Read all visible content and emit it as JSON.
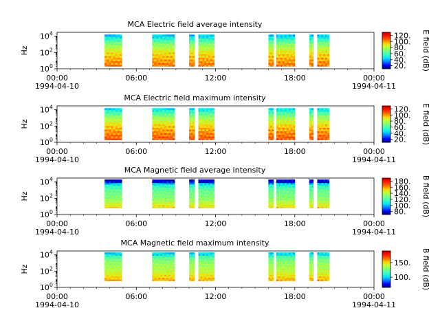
{
  "colors": {
    "colormap": [
      "#00007f",
      "#0000ff",
      "#0080ff",
      "#00e5f5",
      "#3cffbb",
      "#7dff7a",
      "#baff3c",
      "#ffd500",
      "#ff6a00",
      "#ff1a00",
      "#bf0000"
    ]
  },
  "chart_data": [
    {
      "type": "heatmap",
      "title": "MCA  Electric field average intensity",
      "ylabel": "Hz",
      "y_scale": "log",
      "ylim": [
        1,
        30000
      ],
      "ytick_labels": [
        "10^0",
        "10^2",
        "10^4"
      ],
      "xlim": [
        "1994-04-10 00:00",
        "1994-04-11 00:00"
      ],
      "xtick_labels": [
        {
          "time": "00:00",
          "date": "1994-04-10"
        },
        {
          "time": "06:00",
          "date": ""
        },
        {
          "time": "12:00",
          "date": ""
        },
        {
          "time": "18:00",
          "date": ""
        },
        {
          "time": "00:00",
          "date": "1994-04-11"
        }
      ],
      "colorbar": {
        "label": "E field (dB)",
        "range": [
          10,
          130
        ],
        "tick_labels": [
          "20.",
          "40.",
          "60.",
          "80.",
          "100.",
          "120."
        ]
      },
      "data_intervals_hours": [
        [
          3.6,
          4.9
        ],
        [
          7.2,
          8.9
        ],
        [
          10.0,
          10.4
        ],
        [
          10.7,
          11.9
        ],
        [
          16.0,
          16.4
        ],
        [
          16.6,
          18.0
        ],
        [
          19.1,
          19.4
        ],
        [
          19.7,
          20.6
        ]
      ],
      "freq_profile_dB": [
        [
          1,
          108
        ],
        [
          10,
          100
        ],
        [
          100,
          90
        ],
        [
          1000,
          72
        ],
        [
          10000,
          45
        ],
        [
          30000,
          30
        ]
      ],
      "y_extent_log_hz": [
        0.3,
        4.2
      ]
    },
    {
      "type": "heatmap",
      "title": "MCA  Electric field maximum intensity",
      "ylabel": "Hz",
      "y_scale": "log",
      "ylim": [
        1,
        30000
      ],
      "ytick_labels": [
        "10^0",
        "10^2",
        "10^4"
      ],
      "xlim": [
        "1994-04-10 00:00",
        "1994-04-11 00:00"
      ],
      "xtick_labels": [
        {
          "time": "00:00",
          "date": "1994-04-10"
        },
        {
          "time": "06:00",
          "date": ""
        },
        {
          "time": "12:00",
          "date": ""
        },
        {
          "time": "18:00",
          "date": ""
        },
        {
          "time": "00:00",
          "date": "1994-04-11"
        }
      ],
      "colorbar": {
        "label": "E field (dB)",
        "range": [
          10,
          130
        ],
        "tick_labels": [
          "20.",
          "40.",
          "60.",
          "80.",
          "100.",
          "120."
        ]
      },
      "data_intervals_hours": [
        [
          3.6,
          4.9
        ],
        [
          7.2,
          8.9
        ],
        [
          10.0,
          10.4
        ],
        [
          10.7,
          11.9
        ],
        [
          16.0,
          16.4
        ],
        [
          16.6,
          18.0
        ],
        [
          19.1,
          19.4
        ],
        [
          19.7,
          20.6
        ]
      ],
      "freq_profile_dB": [
        [
          1,
          112
        ],
        [
          10,
          104
        ],
        [
          100,
          94
        ],
        [
          1000,
          76
        ],
        [
          10000,
          50
        ],
        [
          30000,
          32
        ]
      ],
      "y_extent_log_hz": [
        0.3,
        4.2
      ]
    },
    {
      "type": "heatmap",
      "title": "MCA  Magnetic field average intensity",
      "ylabel": "Hz",
      "y_scale": "log",
      "ylim": [
        1,
        30000
      ],
      "ytick_labels": [
        "10^0",
        "10^2",
        "10^4"
      ],
      "xlim": [
        "1994-04-10 00:00",
        "1994-04-11 00:00"
      ],
      "xtick_labels": [
        {
          "time": "00:00",
          "date": "1994-04-10"
        },
        {
          "time": "06:00",
          "date": ""
        },
        {
          "time": "12:00",
          "date": ""
        },
        {
          "time": "18:00",
          "date": ""
        },
        {
          "time": "00:00",
          "date": "1994-04-11"
        }
      ],
      "colorbar": {
        "label": "B field (dB)",
        "range": [
          70,
          190
        ],
        "tick_labels": [
          "80.",
          "100.",
          "120.",
          "140.",
          "160.",
          "180."
        ]
      },
      "data_intervals_hours": [
        [
          3.6,
          4.9
        ],
        [
          7.2,
          8.9
        ],
        [
          10.0,
          10.4
        ],
        [
          10.7,
          11.9
        ],
        [
          16.0,
          16.4
        ],
        [
          16.6,
          18.0
        ],
        [
          19.1,
          19.4
        ],
        [
          19.7,
          20.6
        ]
      ],
      "freq_profile_dB": [
        [
          1,
          165
        ],
        [
          10,
          150
        ],
        [
          100,
          132
        ],
        [
          1000,
          125
        ],
        [
          5000,
          110
        ],
        [
          10000,
          80
        ],
        [
          30000,
          72
        ]
      ],
      "y_extent_log_hz": [
        0.8,
        4.3
      ]
    },
    {
      "type": "heatmap",
      "title": "MCA  Magnetic field maximum intensity",
      "ylabel": "Hz",
      "y_scale": "log",
      "ylim": [
        1,
        30000
      ],
      "ytick_labels": [
        "10^0",
        "10^2",
        "10^4"
      ],
      "xlim": [
        "1994-04-10 00:00",
        "1994-04-11 00:00"
      ],
      "xtick_labels": [
        {
          "time": "00:00",
          "date": "1994-04-10"
        },
        {
          "time": "06:00",
          "date": ""
        },
        {
          "time": "12:00",
          "date": ""
        },
        {
          "time": "18:00",
          "date": ""
        },
        {
          "time": "00:00",
          "date": "1994-04-11"
        }
      ],
      "colorbar": {
        "label": "B field (dB)",
        "range": [
          65,
          190
        ],
        "tick_labels": [
          "100.",
          "150."
        ]
      },
      "data_intervals_hours": [
        [
          3.6,
          4.9
        ],
        [
          7.2,
          8.9
        ],
        [
          10.0,
          10.4
        ],
        [
          10.7,
          11.9
        ],
        [
          16.0,
          16.4
        ],
        [
          16.6,
          18.0
        ],
        [
          19.1,
          19.4
        ],
        [
          19.7,
          20.6
        ]
      ],
      "freq_profile_dB": [
        [
          1,
          170
        ],
        [
          10,
          155
        ],
        [
          100,
          140
        ],
        [
          1000,
          132
        ],
        [
          5000,
          120
        ],
        [
          10000,
          105
        ],
        [
          30000,
          95
        ]
      ],
      "y_extent_log_hz": [
        0.8,
        4.3
      ]
    }
  ]
}
